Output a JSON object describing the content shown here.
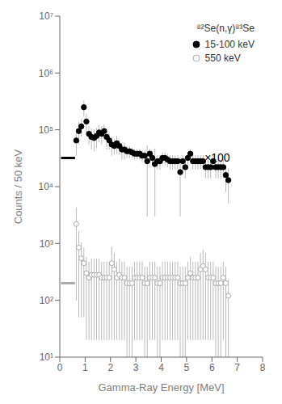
{
  "chart_data": {
    "type": "scatter",
    "xlabel": "Gamma-Ray Energy [MeV]",
    "ylabel": "Counts / 50 keV",
    "reaction_label": "⁸²Se(n,γ)⁸³Se",
    "log": "y",
    "grid": false,
    "legend": "upper right",
    "xlim": [
      0,
      8
    ],
    "ylim": [
      10,
      10000000.0
    ],
    "xticks": [
      0,
      1,
      2,
      3,
      4,
      5,
      6,
      7,
      8
    ],
    "yticks": [
      {
        "value": 10,
        "label": "10¹"
      },
      {
        "value": 100,
        "label": "10²"
      },
      {
        "value": 1000,
        "label": "10³"
      },
      {
        "value": 10000,
        "label": "10⁴"
      },
      {
        "value": 100000,
        "label": "10⁵"
      },
      {
        "value": 1000000,
        "label": "10⁶"
      },
      {
        "value": 10000000,
        "label": "10⁷"
      }
    ],
    "annotations": [
      {
        "text": "×100",
        "x": 5.55,
        "y": 32000.0
      }
    ],
    "extrapolation_lines": [
      {
        "x": [
          0.05,
          0.6
        ],
        "values": [
          32000.0,
          32000.0
        ],
        "color": "#000000"
      },
      {
        "x": [
          0.05,
          0.6
        ],
        "values": [
          200.0,
          200.0
        ],
        "color": "#aaaaaa"
      }
    ],
    "series": [
      {
        "name": "15-100 keV",
        "color": "#000000",
        "marker": "circle",
        "error_color": "#aaaaaa",
        "x": [
          0.65,
          0.75,
          0.85,
          0.95,
          1.05,
          1.15,
          1.25,
          1.35,
          1.45,
          1.55,
          1.65,
          1.75,
          1.85,
          1.95,
          2.05,
          2.15,
          2.25,
          2.35,
          2.45,
          2.55,
          2.65,
          2.75,
          2.85,
          2.95,
          3.05,
          3.15,
          3.25,
          3.35,
          3.45,
          3.55,
          3.65,
          3.75,
          3.85,
          3.95,
          4.05,
          4.15,
          4.25,
          4.35,
          4.45,
          4.55,
          4.65,
          4.75,
          4.85,
          4.95,
          5.05,
          5.15,
          5.25,
          5.35,
          5.45,
          5.55,
          5.65,
          5.75,
          5.85,
          5.95,
          6.05,
          6.15,
          6.25,
          6.35,
          6.45,
          6.55,
          6.65
        ],
        "values": [
          65000.0,
          95000.0,
          115000.0,
          250000.0,
          140000.0,
          85000.0,
          75000.0,
          72000.0,
          78000.0,
          90000.0,
          85000.0,
          95000.0,
          75000.0,
          65000.0,
          55000.0,
          52000.0,
          58000.0,
          52000.0,
          45000.0,
          45000.0,
          42000.0,
          42000.0,
          40000.0,
          38000.0,
          38000.0,
          38000.0,
          35000.0,
          35000.0,
          28000.0,
          38000.0,
          32000.0,
          25000.0,
          28000.0,
          28000.0,
          32000.0,
          32000.0,
          30000.0,
          28000.0,
          28000.0,
          28000.0,
          28000.0,
          18000.0,
          28000.0,
          22000.0,
          32000.0,
          38000.0,
          28000.0,
          28000.0,
          28000.0,
          28000.0,
          28000.0,
          22000.0,
          22000.0,
          22000.0,
          28000.0,
          22000.0,
          22000.0,
          22000.0,
          22000.0,
          16000.0,
          13000.0
        ],
        "yerr_low": [
          30000.0,
          40000.0,
          40000.0,
          80000.0,
          50000.0,
          30000.0,
          30000.0,
          30000.0,
          30000.0,
          30000.0,
          30000.0,
          30000.0,
          30000.0,
          20000.0,
          20000.0,
          15000.0,
          20000.0,
          15000.0,
          15000.0,
          15000.0,
          10000.0,
          10000.0,
          8000.0,
          8000.0,
          8000.0,
          8000.0,
          8000.0,
          8000.0,
          25000.0,
          8000.0,
          8000.0,
          22000.0,
          8000.0,
          8000.0,
          8000.0,
          8000.0,
          8000.0,
          8000.0,
          8000.0,
          8000.0,
          8000.0,
          15000.0,
          8000.0,
          8000.0,
          8000.0,
          8000.0,
          8000.0,
          8000.0,
          8000.0,
          8000.0,
          8000.0,
          8000.0,
          8000.0,
          8000.0,
          8000.0,
          8000.0,
          8000.0,
          8000.0,
          8000.0,
          8000.0,
          8000.0
        ],
        "yerr_high": [
          30000.0,
          40000.0,
          40000.0,
          80000.0,
          50000.0,
          30000.0,
          30000.0,
          30000.0,
          30000.0,
          30000.0,
          30000.0,
          30000.0,
          30000.0,
          20000.0,
          20000.0,
          15000.0,
          20000.0,
          15000.0,
          15000.0,
          15000.0,
          10000.0,
          10000.0,
          8000.0,
          8000.0,
          8000.0,
          8000.0,
          8000.0,
          8000.0,
          25000.0,
          8000.0,
          8000.0,
          22000.0,
          8000.0,
          8000.0,
          8000.0,
          8000.0,
          8000.0,
          8000.0,
          8000.0,
          8000.0,
          8000.0,
          15000.0,
          8000.0,
          8000.0,
          8000.0,
          8000.0,
          8000.0,
          8000.0,
          8000.0,
          8000.0,
          8000.0,
          8000.0,
          8000.0,
          8000.0,
          8000.0,
          8000.0,
          8000.0,
          8000.0,
          8000.0,
          8000.0,
          8000.0
        ]
      },
      {
        "name": "550 keV",
        "color": "#aaaaaa",
        "marker": "open_circle",
        "error_color": "#aaaaaa",
        "x": [
          0.65,
          0.75,
          0.85,
          0.95,
          1.05,
          1.15,
          1.25,
          1.35,
          1.45,
          1.55,
          1.65,
          1.75,
          1.85,
          1.95,
          2.05,
          2.15,
          2.25,
          2.35,
          2.45,
          2.55,
          2.65,
          2.75,
          2.85,
          2.95,
          3.05,
          3.15,
          3.25,
          3.35,
          3.45,
          3.55,
          3.65,
          3.75,
          3.85,
          3.95,
          4.05,
          4.15,
          4.25,
          4.35,
          4.45,
          4.55,
          4.65,
          4.75,
          4.85,
          4.95,
          5.05,
          5.15,
          5.25,
          5.35,
          5.45,
          5.55,
          5.65,
          5.75,
          5.85,
          5.95,
          6.05,
          6.15,
          6.25,
          6.35,
          6.45,
          6.55,
          6.65
        ],
        "values": [
          2200.0,
          850.0,
          550.0,
          450.0,
          300.0,
          250.0,
          280.0,
          280.0,
          280.0,
          280.0,
          250.0,
          250.0,
          250.0,
          250.0,
          450.0,
          350.0,
          250.0,
          280.0,
          250.0,
          250.0,
          200.0,
          200.0,
          200.0,
          250.0,
          250.0,
          250.0,
          250.0,
          200.0,
          200.0,
          250.0,
          250.0,
          250.0,
          200.0,
          200.0,
          250.0,
          250.0,
          250.0,
          250.0,
          250.0,
          250.0,
          250.0,
          200.0,
          200.0,
          200.0,
          250.0,
          300.0,
          250.0,
          250.0,
          250.0,
          350.0,
          400.0,
          350.0,
          250.0,
          250.0,
          250.0,
          200.0,
          200.0,
          200.0,
          250.0,
          200.0,
          120.0
        ],
        "yerr_low": [
          2100.0,
          800.0,
          500.0,
          400.0,
          280.0,
          230.0,
          260.0,
          260.0,
          260.0,
          260.0,
          230.0,
          230.0,
          230.0,
          230.0,
          430.0,
          330.0,
          230.0,
          260.0,
          230.0,
          230.0,
          190.0,
          190.0,
          190.0,
          230.0,
          230.0,
          230.0,
          230.0,
          190.0,
          190.0,
          230.0,
          230.0,
          230.0,
          190.0,
          190.0,
          230.0,
          230.0,
          230.0,
          230.0,
          230.0,
          230.0,
          230.0,
          190.0,
          190.0,
          190.0,
          230.0,
          280.0,
          230.0,
          230.0,
          230.0,
          330.0,
          380.0,
          330.0,
          230.0,
          230.0,
          230.0,
          190.0,
          190.0,
          190.0,
          230.0,
          190.0,
          110.0
        ],
        "yerr_high": [
          2100.0,
          800.0,
          500.0,
          400.0,
          280.0,
          230.0,
          260.0,
          260.0,
          260.0,
          260.0,
          230.0,
          230.0,
          230.0,
          230.0,
          430.0,
          330.0,
          230.0,
          260.0,
          230.0,
          230.0,
          190.0,
          190.0,
          190.0,
          230.0,
          230.0,
          230.0,
          230.0,
          190.0,
          190.0,
          230.0,
          230.0,
          230.0,
          190.0,
          190.0,
          230.0,
          230.0,
          230.0,
          230.0,
          230.0,
          230.0,
          230.0,
          190.0,
          190.0,
          190.0,
          230.0,
          280.0,
          230.0,
          230.0,
          230.0,
          330.0,
          380.0,
          330.0,
          230.0,
          230.0,
          230.0,
          190.0,
          190.0,
          190.0,
          230.0,
          190.0,
          110.0
        ]
      }
    ]
  }
}
